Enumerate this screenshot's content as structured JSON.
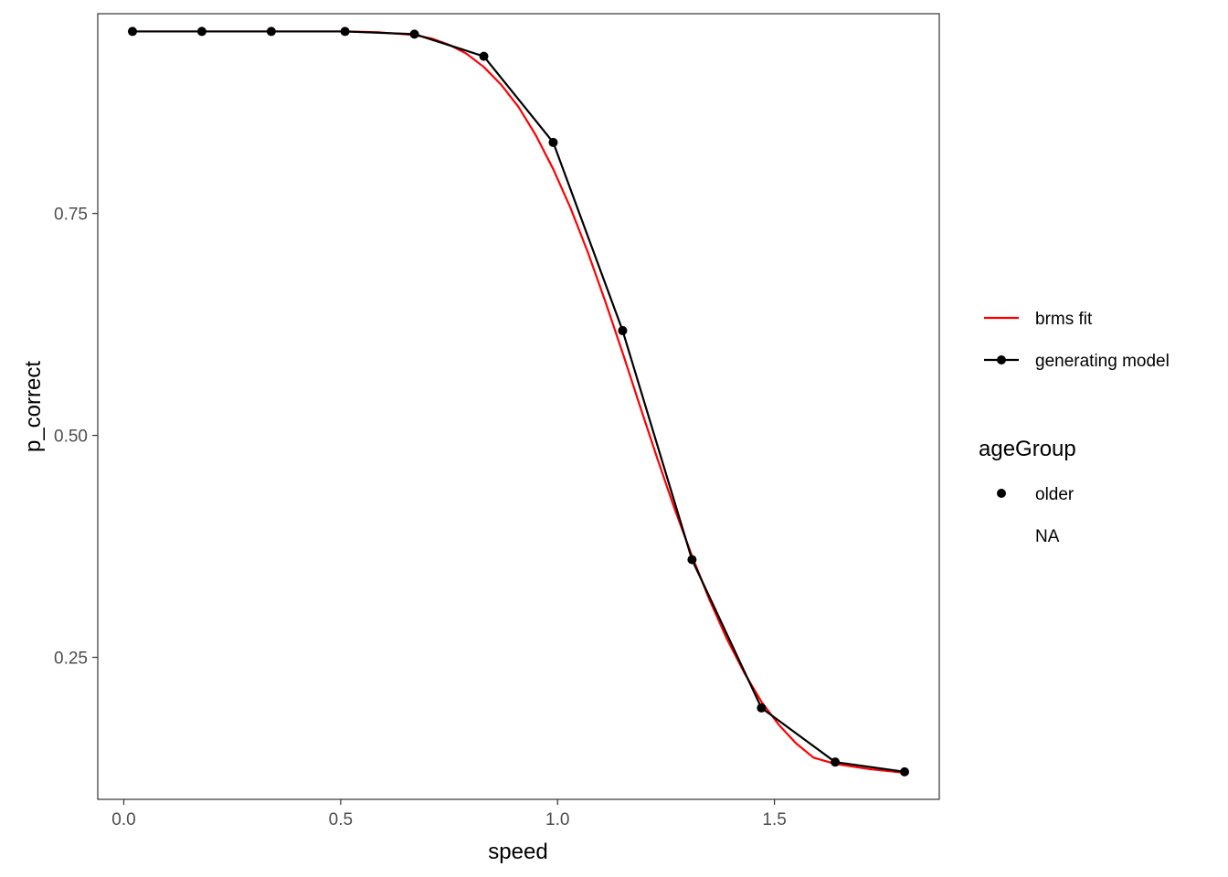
{
  "chart_data": {
    "type": "line",
    "xlabel": "speed",
    "ylabel": "p_correct",
    "xlim": [
      -0.06,
      1.88
    ],
    "ylim": [
      0.09,
      0.975
    ],
    "xticks": [
      0.0,
      0.5,
      1.0,
      1.5
    ],
    "xtick_labels": [
      "0.0",
      "0.5",
      "1.0",
      "1.5"
    ],
    "yticks": [
      0.25,
      0.5,
      0.75
    ],
    "ytick_labels": [
      "0.25",
      "0.50",
      "0.75"
    ],
    "grid": false,
    "legend_position": "right",
    "series": [
      {
        "name": "brms fit",
        "color": "#ff0000",
        "marker": "none",
        "x": [
          0.02,
          0.1,
          0.18,
          0.26,
          0.34,
          0.42,
          0.51,
          0.59,
          0.67,
          0.71,
          0.75,
          0.79,
          0.83,
          0.87,
          0.91,
          0.95,
          0.99,
          1.03,
          1.07,
          1.11,
          1.15,
          1.19,
          1.23,
          1.27,
          1.31,
          1.35,
          1.39,
          1.43,
          1.47,
          1.51,
          1.55,
          1.59,
          1.64,
          1.72,
          1.8
        ],
        "y": [
          0.955,
          0.955,
          0.955,
          0.955,
          0.955,
          0.955,
          0.955,
          0.954,
          0.951,
          0.947,
          0.94,
          0.93,
          0.915,
          0.895,
          0.87,
          0.838,
          0.8,
          0.756,
          0.706,
          0.651,
          0.593,
          0.533,
          0.474,
          0.417,
          0.364,
          0.315,
          0.271,
          0.233,
          0.2,
          0.174,
          0.153,
          0.137,
          0.13,
          0.124,
          0.12
        ]
      },
      {
        "name": "generating model",
        "color": "#000000",
        "marker": "point",
        "x": [
          0.02,
          0.18,
          0.34,
          0.51,
          0.67,
          0.83,
          0.99,
          1.15,
          1.31,
          1.47,
          1.64,
          1.8
        ],
        "y": [
          0.955,
          0.955,
          0.955,
          0.955,
          0.952,
          0.927,
          0.83,
          0.618,
          0.36,
          0.193,
          0.132,
          0.121
        ]
      }
    ],
    "legend_linetype": {
      "items": [
        "brms fit",
        "generating model"
      ]
    },
    "legend_ageGroup": {
      "title": "ageGroup",
      "items": [
        "older",
        "NA"
      ]
    }
  }
}
